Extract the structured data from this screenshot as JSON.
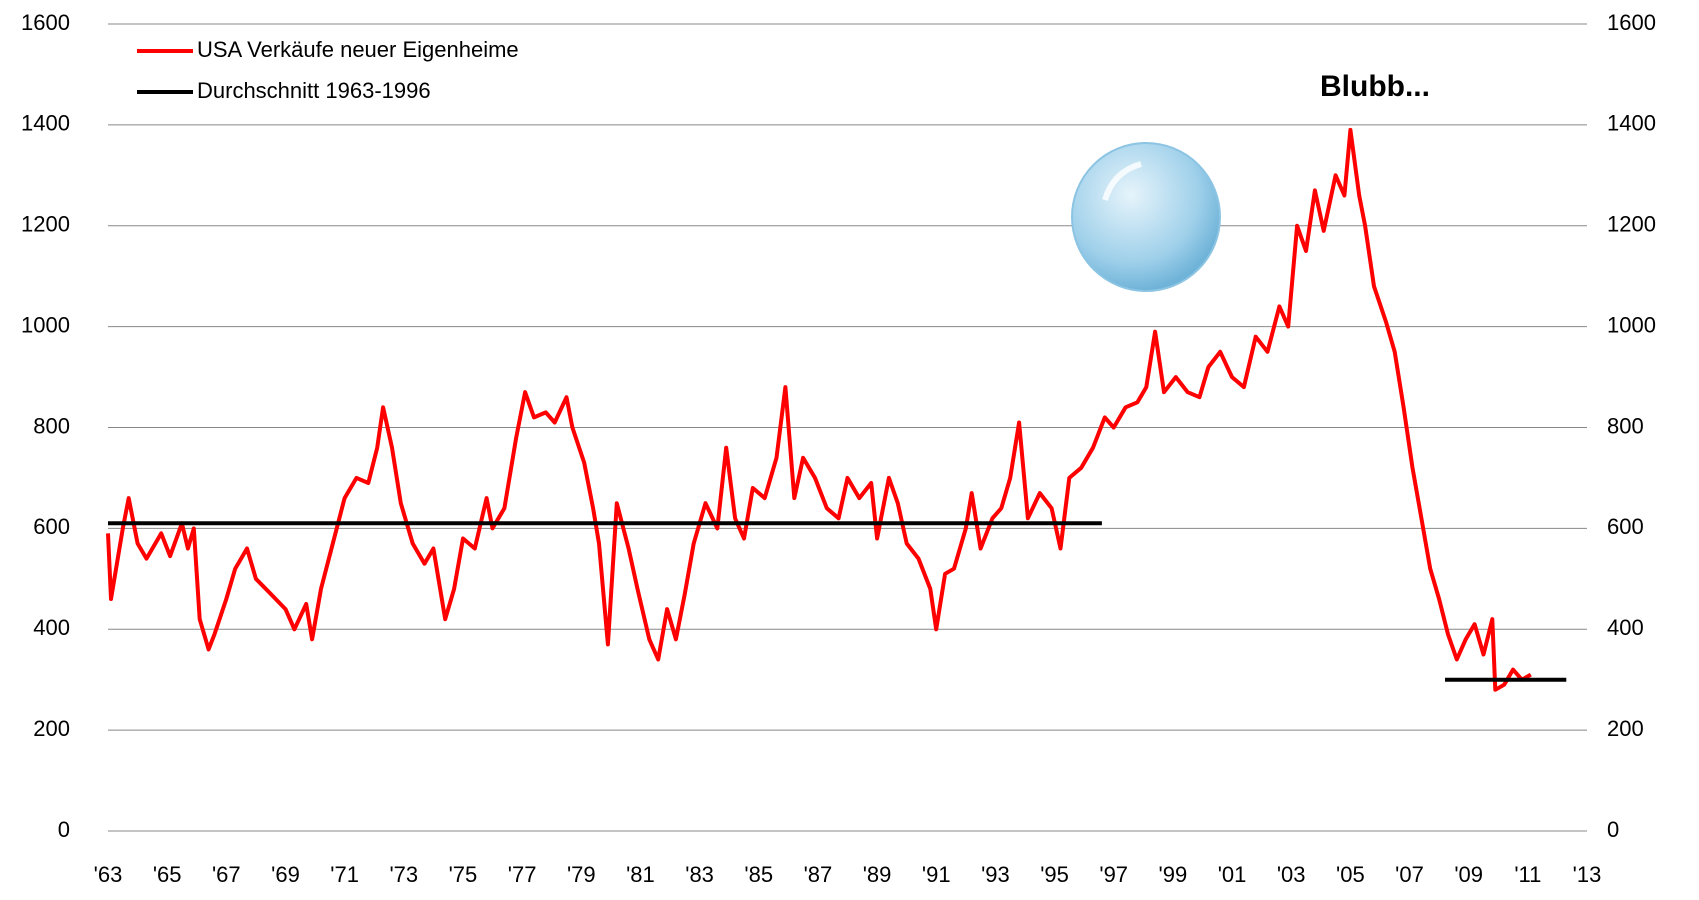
{
  "chart_data": {
    "type": "line",
    "annotation": "Blubb...",
    "xlim": [
      1963,
      2013
    ],
    "xticks": [
      {
        "value": 1963,
        "label": "'63"
      },
      {
        "value": 1965,
        "label": "'65"
      },
      {
        "value": 1967,
        "label": "'67"
      },
      {
        "value": 1969,
        "label": "'69"
      },
      {
        "value": 1971,
        "label": "'71"
      },
      {
        "value": 1973,
        "label": "'73"
      },
      {
        "value": 1975,
        "label": "'75"
      },
      {
        "value": 1977,
        "label": "'77"
      },
      {
        "value": 1979,
        "label": "'79"
      },
      {
        "value": 1981,
        "label": "'81"
      },
      {
        "value": 1983,
        "label": "'83"
      },
      {
        "value": 1985,
        "label": "'85"
      },
      {
        "value": 1987,
        "label": "'87"
      },
      {
        "value": 1989,
        "label": "'89"
      },
      {
        "value": 1991,
        "label": "'91"
      },
      {
        "value": 1993,
        "label": "'93"
      },
      {
        "value": 1995,
        "label": "'95"
      },
      {
        "value": 1997,
        "label": "'97"
      },
      {
        "value": 1999,
        "label": "'99"
      },
      {
        "value": 2001,
        "label": "'01"
      },
      {
        "value": 2003,
        "label": "'03"
      },
      {
        "value": 2005,
        "label": "'05"
      },
      {
        "value": 2007,
        "label": "'07"
      },
      {
        "value": 2009,
        "label": "'09"
      },
      {
        "value": 2011,
        "label": "'11"
      },
      {
        "value": 2013,
        "label": "'13"
      }
    ],
    "ylim": [
      0,
      1600
    ],
    "yticks": [
      0,
      200,
      400,
      600,
      800,
      1000,
      1200,
      1400,
      1600
    ],
    "y2lim": [
      0,
      1600
    ],
    "y2ticks": [
      0,
      200,
      400,
      600,
      800,
      1000,
      1200,
      1400,
      1600
    ],
    "grid": true,
    "legend": "top-left",
    "series": [
      {
        "name": "USA Verkäufe neuer Eigenheime",
        "color": "#ff0000",
        "x": [
          1963.0,
          1963.1,
          1963.5,
          1963.7,
          1964.0,
          1964.3,
          1964.8,
          1965.1,
          1965.5,
          1965.7,
          1965.9,
          1966.1,
          1966.4,
          1966.6,
          1967.0,
          1967.3,
          1967.7,
          1968.0,
          1968.5,
          1969.0,
          1969.3,
          1969.7,
          1969.9,
          1970.2,
          1970.6,
          1971.0,
          1971.4,
          1971.8,
          1972.1,
          1972.3,
          1972.6,
          1972.9,
          1973.3,
          1973.7,
          1974.0,
          1974.4,
          1974.7,
          1975.0,
          1975.4,
          1975.8,
          1976.0,
          1976.4,
          1976.8,
          1977.1,
          1977.4,
          1977.8,
          1978.1,
          1978.5,
          1978.7,
          1979.1,
          1979.4,
          1979.6,
          1979.9,
          1980.2,
          1980.6,
          1980.9,
          1981.3,
          1981.6,
          1981.9,
          1982.2,
          1982.5,
          1982.8,
          1983.2,
          1983.6,
          1983.9,
          1984.2,
          1984.5,
          1984.8,
          1985.2,
          1985.6,
          1985.9,
          1986.2,
          1986.5,
          1986.9,
          1987.3,
          1987.7,
          1988.0,
          1988.4,
          1988.8,
          1989.0,
          1989.4,
          1989.7,
          1990.0,
          1990.4,
          1990.8,
          1991.0,
          1991.3,
          1991.6,
          1992.0,
          1992.2,
          1992.5,
          1992.9,
          1993.2,
          1993.5,
          1993.8,
          1994.1,
          1994.5,
          1994.9,
          1995.2,
          1995.5,
          1995.9,
          1996.3,
          1996.7,
          1997.0,
          1997.4,
          1997.8,
          1998.1,
          1998.4,
          1998.7,
          1999.1,
          1999.5,
          1999.9,
          2000.2,
          2000.6,
          2001.0,
          2001.4,
          2001.8,
          2002.2,
          2002.6,
          2002.9,
          2003.2,
          2003.5,
          2003.8,
          2004.1,
          2004.5,
          2004.8,
          2005.0,
          2005.3,
          2005.5,
          2005.8,
          2006.2,
          2006.5,
          2006.8,
          2007.1,
          2007.4,
          2007.7,
          2008.0,
          2008.3,
          2008.6,
          2008.9,
          2009.2,
          2009.5,
          2009.8,
          2009.9,
          2010.2,
          2010.5,
          2010.8,
          2011.1
        ],
        "values": [
          590,
          460,
          600,
          660,
          570,
          540,
          590,
          545,
          610,
          560,
          600,
          420,
          360,
          390,
          460,
          520,
          560,
          500,
          470,
          440,
          400,
          450,
          380,
          480,
          570,
          660,
          700,
          690,
          760,
          840,
          760,
          650,
          570,
          530,
          560,
          420,
          480,
          580,
          560,
          660,
          600,
          640,
          780,
          870,
          820,
          830,
          810,
          860,
          800,
          730,
          640,
          570,
          370,
          650,
          560,
          480,
          380,
          340,
          440,
          380,
          470,
          570,
          650,
          600,
          760,
          620,
          580,
          680,
          660,
          740,
          880,
          660,
          740,
          700,
          640,
          620,
          700,
          660,
          690,
          580,
          700,
          650,
          570,
          540,
          480,
          400,
          510,
          520,
          600,
          670,
          560,
          620,
          640,
          700,
          810,
          620,
          670,
          640,
          560,
          700,
          720,
          760,
          820,
          800,
          840,
          850,
          880,
          990,
          870,
          900,
          870,
          860,
          920,
          950,
          900,
          880,
          980,
          950,
          1040,
          1000,
          1200,
          1150,
          1270,
          1190,
          1300,
          1260,
          1390,
          1260,
          1200,
          1080,
          1010,
          950,
          840,
          720,
          620,
          520,
          460,
          390,
          340,
          380,
          410,
          350,
          420,
          280,
          290,
          320,
          300,
          310
        ]
      },
      {
        "name": "Durchschnitt 1963-1996",
        "color": "#000000",
        "x": [
          1963.0,
          1996.6,
          2002.0,
          2008.2,
          2012.3
        ],
        "values": [
          610,
          610,
          null,
          300,
          300
        ]
      }
    ]
  }
}
